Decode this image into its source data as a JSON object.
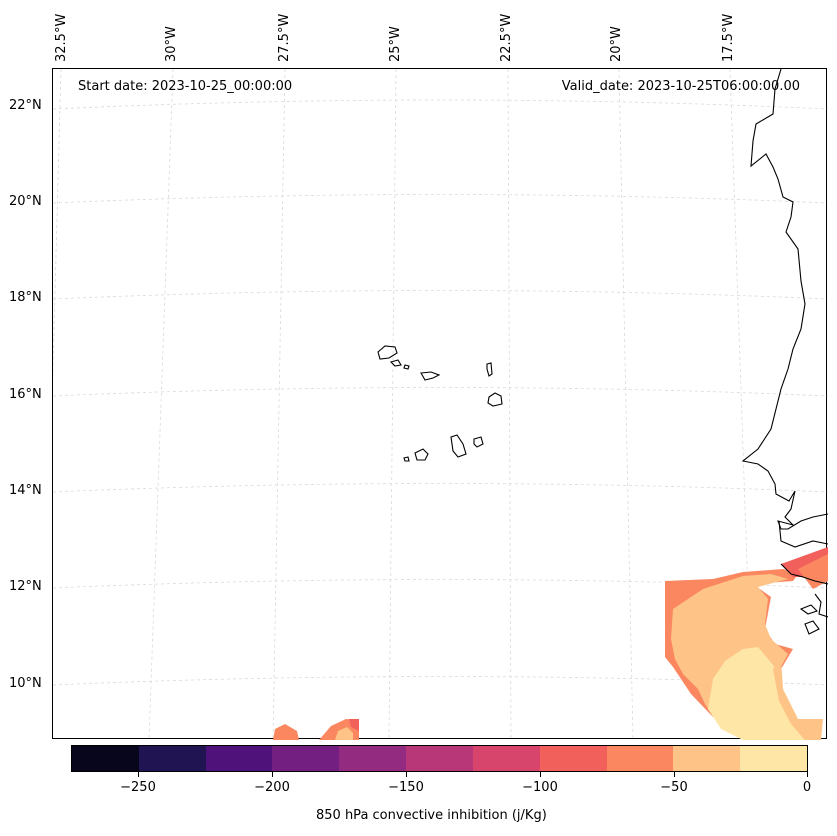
{
  "header": {
    "start_date": "Start date: 2023-10-25_00:00:00",
    "valid_date": "Valid_date: 2023-10-25T06:00:00.00"
  },
  "axes": {
    "lon_labels": [
      "32.5°W",
      "30°W",
      "27.5°W",
      "25°W",
      "22.5°W",
      "20°W",
      "17.5°W"
    ],
    "lat_labels": [
      "22°N",
      "20°N",
      "18°N",
      "16°N",
      "14°N",
      "12°N",
      "10°N"
    ]
  },
  "colorbar": {
    "label": "850 hPa convective inhibition (j/Kg)",
    "ticks": [
      "−250",
      "−200",
      "−150",
      "−100",
      "−50",
      "0"
    ],
    "colors": [
      "#07061c",
      "#211452",
      "#4f127b",
      "#721f81",
      "#932b80",
      "#b73779",
      "#d8456c",
      "#f2605c",
      "#fb8761",
      "#fec387",
      "#fde6a6"
    ]
  },
  "fields": {
    "cin_fill_colors": {
      "minus_75_to_50": "#fb8761",
      "minus_50_to_25": "#fec387",
      "minus_25_to_0": "#fde6a6",
      "minus_100_to_75": "#f2605c"
    }
  }
}
